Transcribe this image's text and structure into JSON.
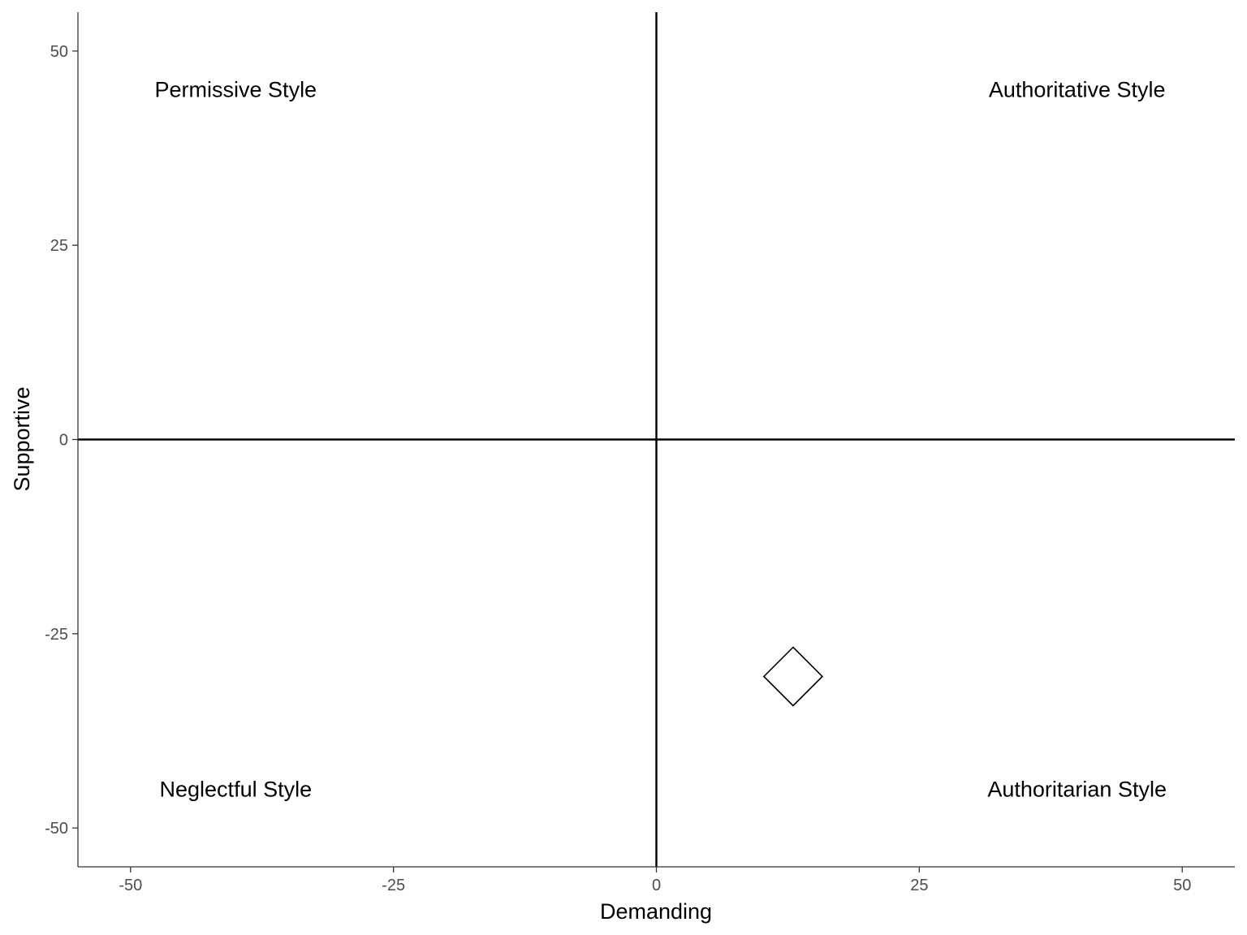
{
  "chart_data": {
    "type": "scatter",
    "title": "",
    "xlabel": "Demanding",
    "ylabel": "Supportive",
    "xlim": [
      -55,
      55
    ],
    "ylim": [
      -55,
      55
    ],
    "x_ticks": [
      -50,
      -25,
      0,
      25,
      50
    ],
    "y_ticks": [
      -50,
      -25,
      0,
      25,
      50
    ],
    "x_tick_labels": [
      "-50",
      "-25",
      "0",
      "25",
      "50"
    ],
    "y_tick_labels": [
      "-50",
      "-25",
      "0",
      "25",
      "50"
    ],
    "grid": false,
    "reference_lines": {
      "x": 0,
      "y": 0
    },
    "points": [
      {
        "x": 13,
        "y": -30.5,
        "shape": "diamond-open"
      }
    ],
    "annotations": [
      {
        "text": "Permissive Style",
        "x": -40,
        "y": 45
      },
      {
        "text": "Authoritative Style",
        "x": 40,
        "y": 45
      },
      {
        "text": "Neglectful Style",
        "x": -40,
        "y": -45
      },
      {
        "text": "Authoritarian Style",
        "x": 40,
        "y": -45
      }
    ],
    "colors": {
      "axis": "#333333",
      "tick_text": "#4d4d4d",
      "text": "#000000",
      "point_stroke": "#000000",
      "background": "#ffffff"
    }
  }
}
